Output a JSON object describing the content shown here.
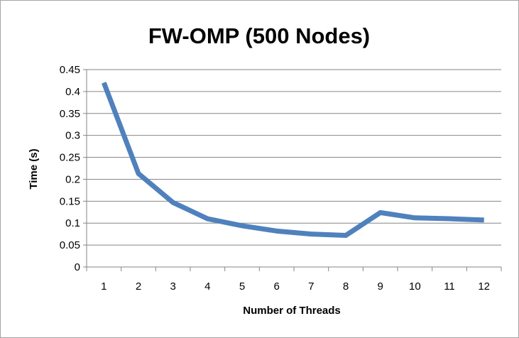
{
  "chart_data": {
    "type": "line",
    "title": "FW-OMP (500 Nodes)",
    "xlabel": "Number of Threads",
    "ylabel": "Time (s)",
    "categories": [
      "1",
      "2",
      "3",
      "4",
      "5",
      "6",
      "7",
      "8",
      "9",
      "10",
      "11",
      "12"
    ],
    "y_ticks": [
      "0",
      "0.05",
      "0.1",
      "0.15",
      "0.2",
      "0.25",
      "0.3",
      "0.35",
      "0.4",
      "0.45"
    ],
    "ylim": [
      0,
      0.45
    ],
    "grid": true,
    "legend": "none",
    "series": [
      {
        "color": "#4f81bd",
        "values": [
          0.42,
          0.213,
          0.147,
          0.11,
          0.094,
          0.082,
          0.075,
          0.072,
          0.124,
          0.112,
          0.11,
          0.107
        ]
      }
    ]
  }
}
